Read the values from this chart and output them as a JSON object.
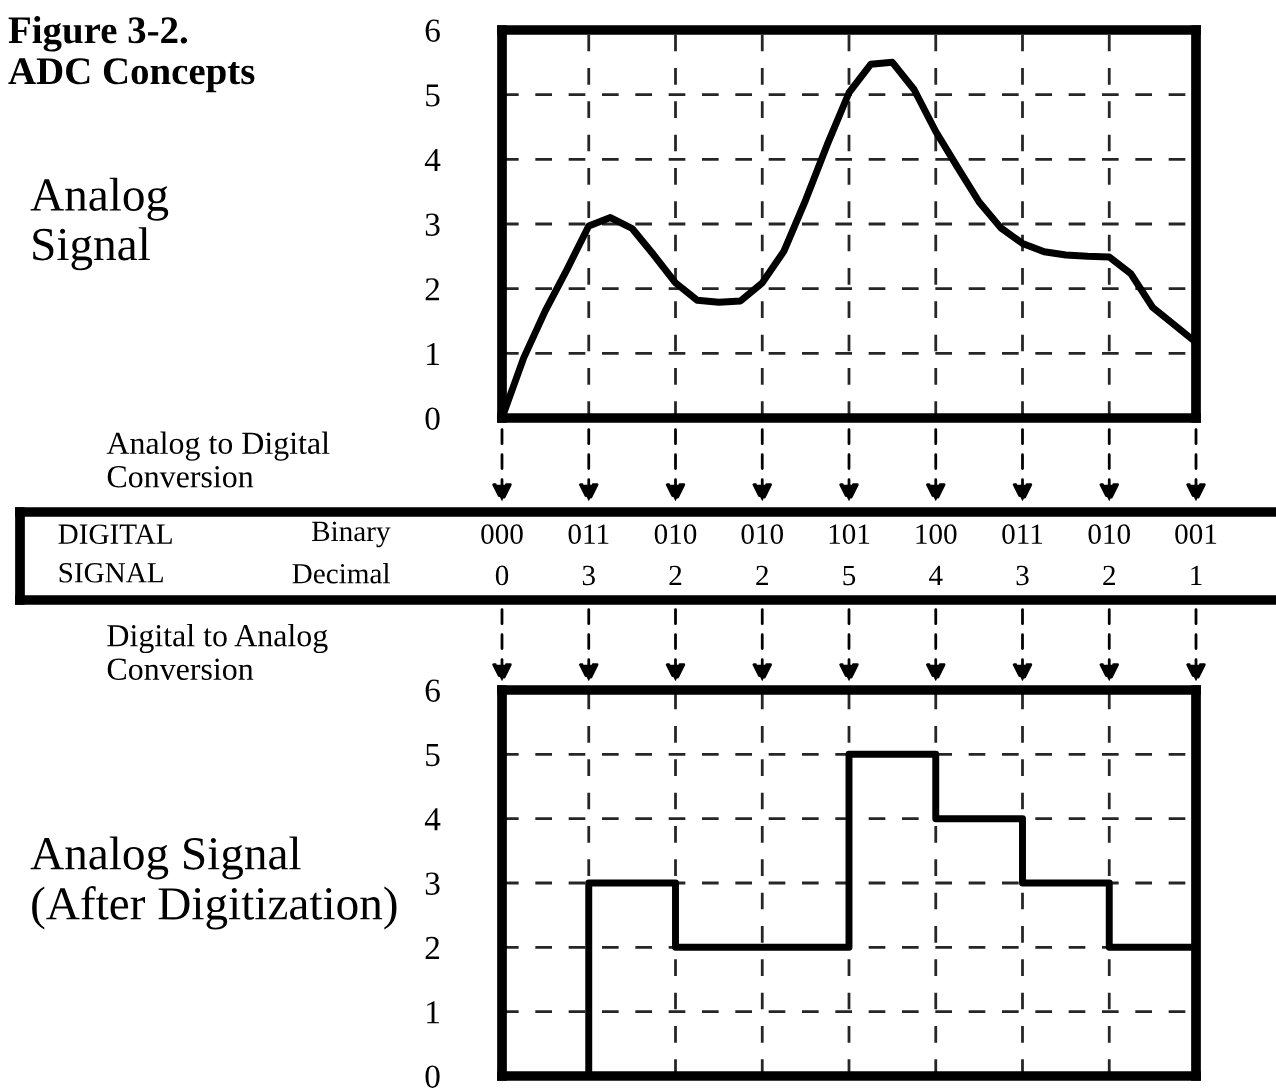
{
  "chart_data": [
    {
      "type": "line",
      "title": "Figure 3-2.\nADC Concepts",
      "ylabel": "Analog\nSignal",
      "annotations": [
        "Analog to Digital\nConversion"
      ],
      "categories": [
        null,
        null,
        null,
        null,
        null,
        null,
        null,
        null,
        null,
        null,
        null,
        null,
        null,
        null,
        null,
        null,
        null,
        null,
        null,
        null,
        null,
        null,
        null,
        null,
        null,
        null,
        null,
        null,
        null,
        null,
        null,
        null,
        null
      ],
      "series": [
        {
          "color": "#000000",
          "values": [
            0,
            0.93,
            1.66,
            2.3,
            2.97,
            3.1,
            2.93,
            2.52,
            2.09,
            1.82,
            1.79,
            1.81,
            2.09,
            2.58,
            3.37,
            4.23,
            5.03,
            5.47,
            5.5,
            5.08,
            4.43,
            3.88,
            3.34,
            2.94,
            2.7,
            2.57,
            2.52,
            2.5,
            2.49,
            2.23,
            1.71,
            1.44,
            1.17
          ]
        }
      ],
      "ylim": [
        0,
        6
      ],
      "yticks": [
        0,
        1,
        2,
        3,
        4,
        5,
        6
      ],
      "grid": true,
      "tick_labels": "y",
      "line_style": "solid"
    },
    {
      "type": "other",
      "annotations": [
        "DIGITAL\nSIGNAL",
        "Binary",
        "Decimal"
      ],
      "categories": [
        "000",
        "011",
        "010",
        "010",
        "101",
        "100",
        "011",
        "010",
        "001"
      ],
      "values": [
        0,
        3,
        2,
        2,
        5,
        4,
        3,
        2,
        1
      ],
      "data_labels": true
    },
    {
      "type": "step",
      "ylabel": "Analog Signal\n(After Digitization)",
      "annotations": [
        "Digital to Analog\nConversion"
      ],
      "categories": [
        null,
        null,
        null,
        null,
        null,
        null,
        null,
        null,
        null
      ],
      "series": [
        {
          "color": "#000000",
          "values": [
            0,
            3,
            2,
            2,
            5,
            4,
            3,
            2,
            2
          ]
        }
      ],
      "ylim": [
        0,
        6
      ],
      "yticks": [
        0,
        1,
        2,
        3,
        4,
        5,
        6
      ],
      "grid": true,
      "tick_labels": "y",
      "line_style": "solid"
    }
  ]
}
